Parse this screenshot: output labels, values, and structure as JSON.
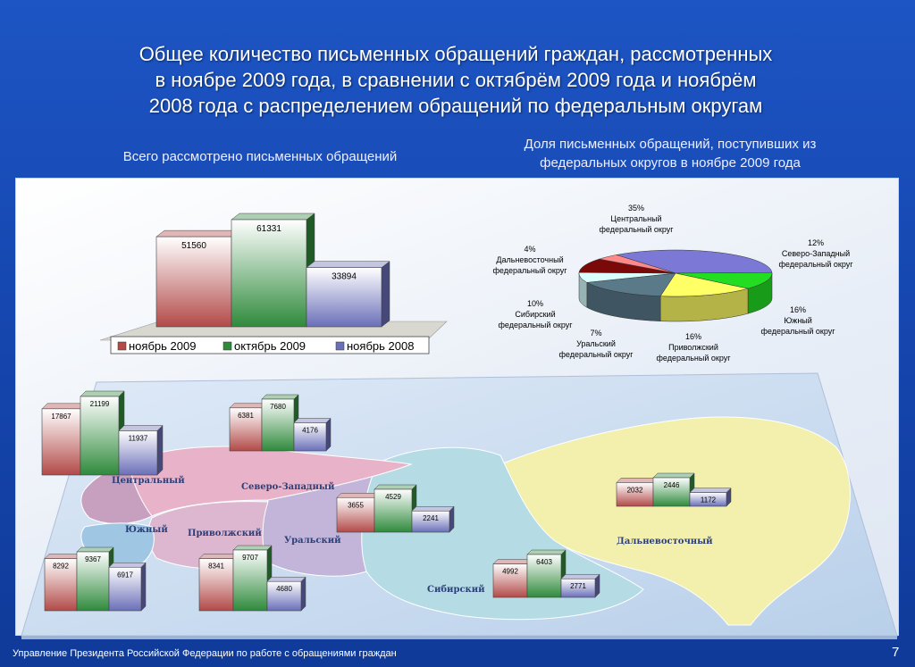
{
  "title_lines": [
    "Общее количество письменных обращений граждан, рассмотренных",
    "в ноябре 2009 года, в сравнении с октябрём 2009 года и ноябрём",
    "2008 года с распределением обращений по федеральным округам"
  ],
  "subtitle_left": "Всего рассмотрено письменных обращений",
  "subtitle_right_lines": [
    "Доля письменных обращений, поступивших из",
    "федеральных округов в ноябре 2009 года"
  ],
  "footer": "Управление Президента Российской Федерации по работе с обращениями граждан",
  "page_number": "7",
  "colors": {
    "nov2009": "#b24a48",
    "oct2009": "#2f8a3c",
    "nov2008": "#6a6fb8",
    "map_central": "#c79fbf",
    "map_nw": "#e8b3c8",
    "map_south": "#9fc7e3",
    "map_volga": "#ddb6cf",
    "map_ural": "#c2b5d9",
    "map_siberia": "#b5dbe4",
    "map_far_east": "#f3f0ad"
  },
  "map_labels": {
    "central": "Центральный",
    "north_west": "Северо-Западный",
    "south": "Южный",
    "volga": "Приволжский",
    "ural": "Уральский",
    "siberia": "Сибирский",
    "far_east": "Дальневосточный"
  },
  "chart_data": [
    {
      "type": "bar",
      "title": "Всего рассмотрено письменных обращений",
      "categories": [
        "ноябрь 2009",
        "октябрь 2009",
        "ноябрь 2008"
      ],
      "values": [
        51560,
        61331,
        33894
      ],
      "legend": [
        "ноябрь 2009",
        "октябрь 2009",
        "ноябрь 2008"
      ],
      "legend_position": "bottom"
    },
    {
      "type": "pie",
      "title": "Доля письменных обращений, поступивших из федеральных округов в ноябре 2009 года",
      "slices": [
        {
          "name": "Центральный федеральный округ",
          "value": 35,
          "label": "35%"
        },
        {
          "name": "Северо-Западный федеральный округ",
          "value": 12,
          "label": "12%"
        },
        {
          "name": "Южный федеральный округ",
          "value": 16,
          "label": "16%"
        },
        {
          "name": "Приволжский федеральный округ",
          "value": 16,
          "label": "16%"
        },
        {
          "name": "Уральский федеральный округ",
          "value": 7,
          "label": "7%"
        },
        {
          "name": "Сибирский федеральный округ",
          "value": 10,
          "label": "10%"
        },
        {
          "name": "Дальневосточный федеральный округ",
          "value": 4,
          "label": "4%"
        }
      ]
    },
    {
      "type": "bar",
      "region": "Центральный",
      "categories": [
        "ноябрь 2009",
        "октябрь 2009",
        "ноябрь 2008"
      ],
      "values": [
        17867,
        21199,
        11937
      ]
    },
    {
      "type": "bar",
      "region": "Северо-Западный",
      "categories": [
        "ноябрь 2009",
        "октябрь 2009",
        "ноябрь 2008"
      ],
      "values": [
        6381,
        7680,
        4176
      ]
    },
    {
      "type": "bar",
      "region": "Южный",
      "categories": [
        "ноябрь 2009",
        "октябрь 2009",
        "ноябрь 2008"
      ],
      "values": [
        8292,
        9367,
        6917
      ]
    },
    {
      "type": "bar",
      "region": "Приволжский",
      "categories": [
        "ноябрь 2009",
        "октябрь 2009",
        "ноябрь 2008"
      ],
      "values": [
        8341,
        9707,
        4680
      ]
    },
    {
      "type": "bar",
      "region": "Уральский",
      "categories": [
        "ноябрь 2009",
        "октябрь 2009",
        "ноябрь 2008"
      ],
      "values": [
        3655,
        4529,
        2241
      ]
    },
    {
      "type": "bar",
      "region": "Сибирский",
      "categories": [
        "ноябрь 2009",
        "октябрь 2009",
        "ноябрь 2008"
      ],
      "values": [
        4992,
        6403,
        2771
      ]
    },
    {
      "type": "bar",
      "region": "Дальневосточный",
      "categories": [
        "ноябрь 2009",
        "октябрь 2009",
        "ноябрь 2008"
      ],
      "values": [
        2032,
        2446,
        1172
      ]
    }
  ]
}
